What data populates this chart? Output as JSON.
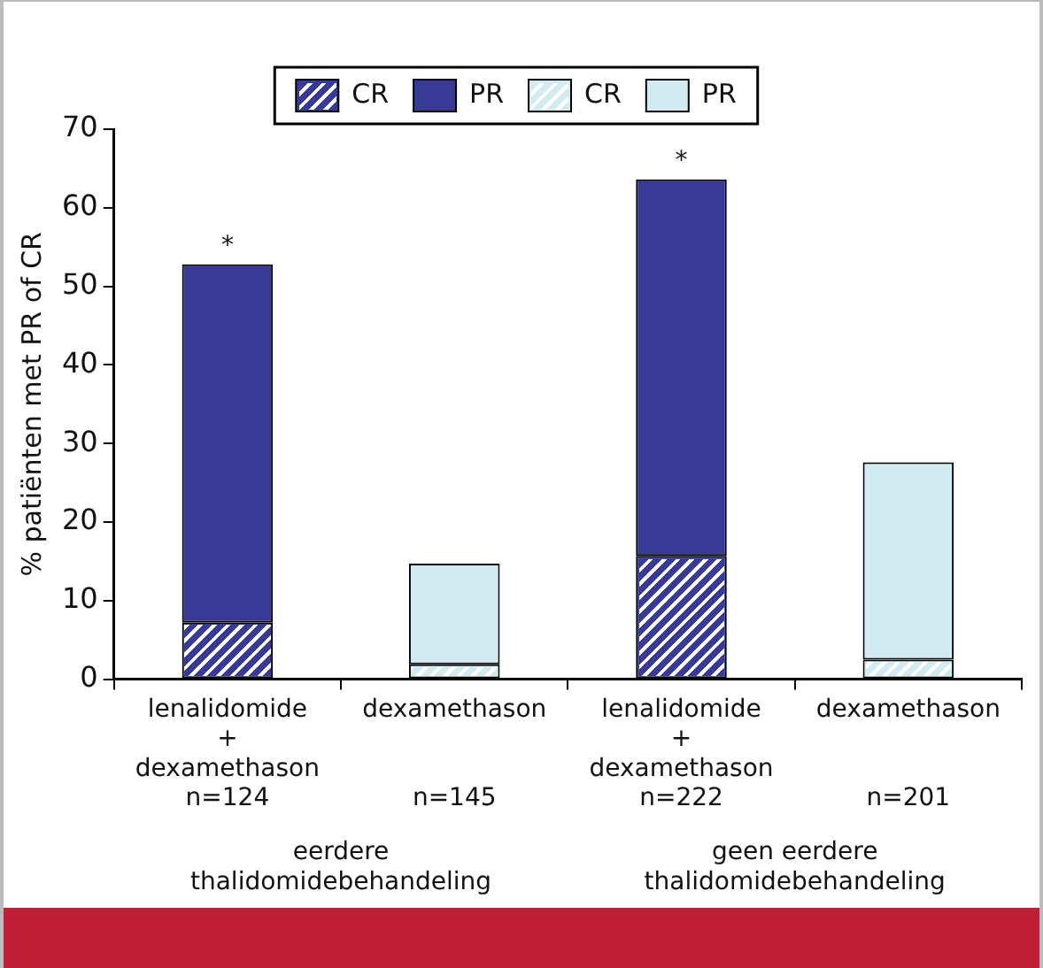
{
  "chart_data": {
    "type": "bar",
    "stacked": true,
    "ylabel": "% patiënten met PR of CR",
    "categories": [
      "lenalidomide\n+\ndexamethason\nn=124",
      "dexamethason\n\n\nn=145",
      "lenalidomide\n+\ndexamethason\nn=222",
      "dexamethason\n\n\nn=201"
    ],
    "series": [
      {
        "name": "CR",
        "color": "#383b96",
        "values": [
          7.2,
          null,
          15.7,
          null
        ]
      },
      {
        "name": "PR",
        "color": "#383b96",
        "values": [
          45.6,
          null,
          47.9,
          null
        ]
      },
      {
        "name": "CR",
        "color": "#d2ebf2",
        "values": [
          null,
          1.9,
          null,
          2.5
        ]
      },
      {
        "name": "PR",
        "color": "#d2ebf2",
        "values": [
          null,
          12.8,
          null,
          25.1
        ]
      }
    ],
    "ylim": [
      0,
      70
    ],
    "yticks": [
      0,
      10,
      20,
      30,
      40,
      50,
      60,
      70
    ],
    "grid": false,
    "legend": "top",
    "annotations": [
      {
        "text": "*",
        "x": "lenalidomide\n+\ndexamethason\nn=124",
        "y": 52.8
      },
      {
        "text": "*",
        "x": "lenalidomide\n+\ndexamethason\nn=222",
        "y": 63.6
      },
      "eerdere\nthalidomidebehandeling",
      "geen eerdere\nthalidomidebehandeling"
    ]
  }
}
